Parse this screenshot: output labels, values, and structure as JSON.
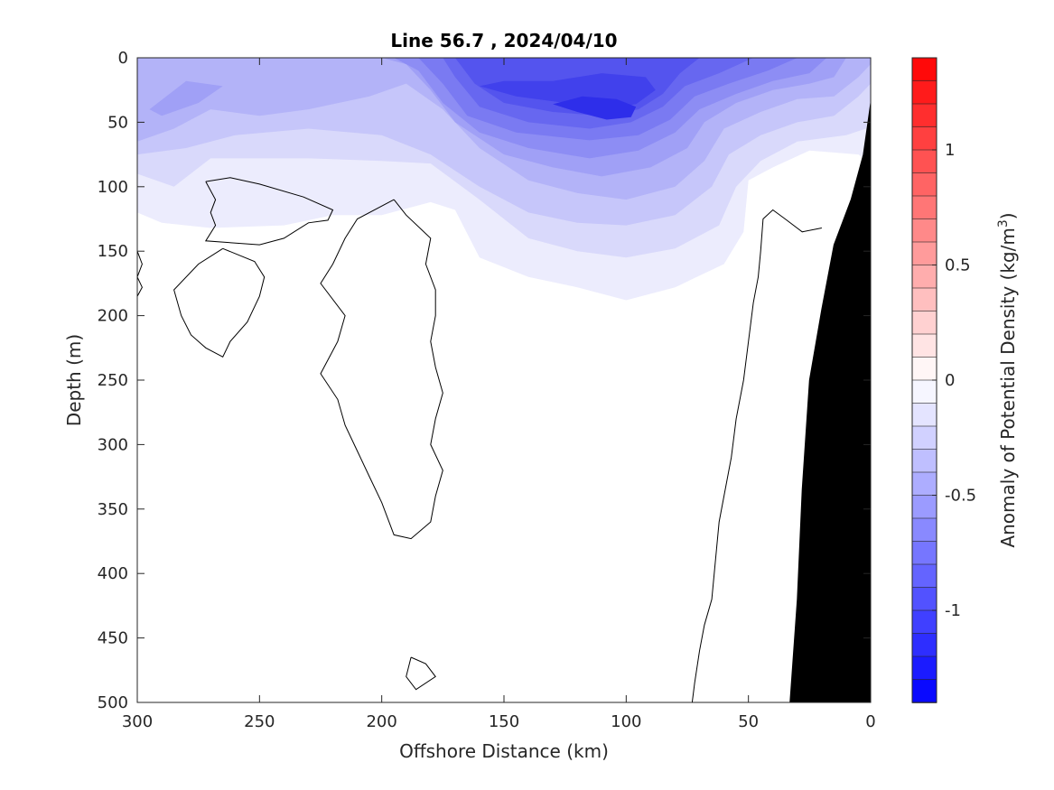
{
  "chart_data": {
    "type": "heatmap",
    "title": "Line 56.7 , 2024/04/10",
    "xlabel": "Offshore Distance (km)",
    "ylabel": "Depth (m)",
    "xlim": [
      300,
      0
    ],
    "ylim": [
      500,
      0
    ],
    "x_ticks": [
      300,
      250,
      200,
      150,
      100,
      50,
      0
    ],
    "y_ticks": [
      0,
      50,
      100,
      150,
      200,
      250,
      300,
      350,
      400,
      450,
      500
    ],
    "colorbar": {
      "label": "Anomaly of Potential Density (kg/m",
      "label_sup": "3",
      "label_end": ")",
      "ticks": [
        1,
        0.5,
        0,
        -0.5,
        -1
      ],
      "tick_labels": [
        "1",
        "0.5",
        "0",
        "-0.5",
        "-1"
      ],
      "range": [
        -1.4,
        1.4
      ],
      "levels": 28
    },
    "anomaly_levels": [
      {
        "level": -0.1,
        "color": "#ececfd",
        "boundary": [
          [
            300,
            120
          ],
          [
            290,
            128
          ],
          [
            270,
            132
          ],
          [
            240,
            130
          ],
          [
            220,
            122
          ],
          [
            200,
            122
          ],
          [
            180,
            112
          ],
          [
            170,
            118
          ],
          [
            160,
            155
          ],
          [
            140,
            170
          ],
          [
            120,
            178
          ],
          [
            100,
            188
          ],
          [
            80,
            178
          ],
          [
            60,
            160
          ],
          [
            52,
            135
          ],
          [
            50,
            95
          ],
          [
            40,
            85
          ],
          [
            25,
            72
          ],
          [
            5,
            75
          ],
          [
            0,
            82
          ],
          [
            0,
            0
          ],
          [
            300,
            0
          ]
        ]
      },
      {
        "level": -0.2,
        "color": "#d9d9fb",
        "boundary": [
          [
            300,
            90
          ],
          [
            285,
            100
          ],
          [
            270,
            78
          ],
          [
            230,
            78
          ],
          [
            200,
            80
          ],
          [
            180,
            82
          ],
          [
            160,
            110
          ],
          [
            140,
            140
          ],
          [
            120,
            150
          ],
          [
            100,
            155
          ],
          [
            80,
            148
          ],
          [
            62,
            130
          ],
          [
            55,
            100
          ],
          [
            45,
            80
          ],
          [
            30,
            65
          ],
          [
            10,
            60
          ],
          [
            2,
            55
          ],
          [
            0,
            40
          ],
          [
            0,
            0
          ],
          [
            300,
            0
          ]
        ]
      },
      {
        "level": -0.3,
        "color": "#c6c6fa",
        "boundary": [
          [
            300,
            75
          ],
          [
            280,
            70
          ],
          [
            260,
            60
          ],
          [
            230,
            55
          ],
          [
            200,
            60
          ],
          [
            180,
            75
          ],
          [
            160,
            100
          ],
          [
            140,
            120
          ],
          [
            120,
            128
          ],
          [
            100,
            130
          ],
          [
            80,
            122
          ],
          [
            65,
            100
          ],
          [
            58,
            75
          ],
          [
            45,
            60
          ],
          [
            30,
            50
          ],
          [
            15,
            45
          ],
          [
            5,
            30
          ],
          [
            0,
            20
          ],
          [
            0,
            0
          ],
          [
            300,
            0
          ]
        ]
      },
      {
        "level": -0.4,
        "color": "#b3b3f8",
        "boundary": [
          [
            300,
            65
          ],
          [
            285,
            55
          ],
          [
            270,
            40
          ],
          [
            250,
            45
          ],
          [
            230,
            40
          ],
          [
            205,
            30
          ],
          [
            190,
            20
          ],
          [
            175,
            40
          ],
          [
            160,
            70
          ],
          [
            140,
            95
          ],
          [
            120,
            105
          ],
          [
            100,
            110
          ],
          [
            80,
            100
          ],
          [
            68,
            80
          ],
          [
            60,
            55
          ],
          [
            45,
            42
          ],
          [
            30,
            32
          ],
          [
            15,
            30
          ],
          [
            5,
            15
          ],
          [
            0,
            5
          ],
          [
            0,
            0
          ],
          [
            250,
            0
          ],
          [
            240,
            10
          ],
          [
            215,
            20
          ],
          [
            200,
            15
          ],
          [
            230,
            0
          ],
          [
            300,
            0
          ]
        ]
      },
      {
        "level": -0.5,
        "color": "#a0a0f6",
        "boundary": [
          [
            290,
            45
          ],
          [
            275,
            35
          ],
          [
            265,
            22
          ],
          [
            280,
            18
          ],
          [
            295,
            40
          ],
          [
            290,
            45
          ]
        ]
      },
      {
        "level": -0.5,
        "color": "#a0a0f6",
        "boundary": [
          [
            200,
            0
          ],
          [
            190,
            5
          ],
          [
            180,
            25
          ],
          [
            170,
            50
          ],
          [
            150,
            75
          ],
          [
            130,
            85
          ],
          [
            110,
            92
          ],
          [
            90,
            85
          ],
          [
            75,
            70
          ],
          [
            68,
            50
          ],
          [
            55,
            35
          ],
          [
            40,
            25
          ],
          [
            25,
            20
          ],
          [
            15,
            15
          ],
          [
            10,
            0
          ]
        ]
      },
      {
        "level": -0.6,
        "color": "#8d8df4",
        "boundary": [
          [
            195,
            0
          ],
          [
            185,
            10
          ],
          [
            175,
            35
          ],
          [
            160,
            58
          ],
          [
            140,
            70
          ],
          [
            115,
            78
          ],
          [
            95,
            72
          ],
          [
            80,
            58
          ],
          [
            70,
            40
          ],
          [
            55,
            28
          ],
          [
            40,
            18
          ],
          [
            25,
            12
          ],
          [
            18,
            0
          ]
        ]
      },
      {
        "level": -0.7,
        "color": "#7a7af2",
        "boundary": [
          [
            185,
            0
          ],
          [
            175,
            20
          ],
          [
            165,
            45
          ],
          [
            145,
            58
          ],
          [
            115,
            64
          ],
          [
            95,
            60
          ],
          [
            82,
            48
          ],
          [
            72,
            30
          ],
          [
            58,
            20
          ],
          [
            42,
            10
          ],
          [
            30,
            0
          ]
        ]
      },
      {
        "level": -0.8,
        "color": "#6767f0",
        "boundary": [
          [
            175,
            0
          ],
          [
            170,
            15
          ],
          [
            160,
            38
          ],
          [
            140,
            50
          ],
          [
            115,
            55
          ],
          [
            98,
            50
          ],
          [
            85,
            38
          ],
          [
            76,
            22
          ],
          [
            62,
            12
          ],
          [
            48,
            0
          ]
        ]
      },
      {
        "level": -0.9,
        "color": "#5454ee",
        "boundary": [
          [
            170,
            0
          ],
          [
            162,
            20
          ],
          [
            150,
            35
          ],
          [
            130,
            42
          ],
          [
            110,
            45
          ],
          [
            95,
            40
          ],
          [
            85,
            28
          ],
          [
            78,
            12
          ],
          [
            70,
            0
          ]
        ]
      },
      {
        "level": -1.0,
        "color": "#4141ec",
        "boundary": [
          [
            160,
            22
          ],
          [
            145,
            30
          ],
          [
            125,
            35
          ],
          [
            110,
            40
          ],
          [
            96,
            36
          ],
          [
            88,
            25
          ],
          [
            92,
            15
          ],
          [
            110,
            12
          ],
          [
            130,
            18
          ],
          [
            150,
            18
          ],
          [
            160,
            22
          ]
        ]
      },
      {
        "level": -1.1,
        "color": "#2e2eea",
        "boundary": [
          [
            130,
            36
          ],
          [
            120,
            42
          ],
          [
            108,
            48
          ],
          [
            98,
            46
          ],
          [
            96,
            38
          ],
          [
            104,
            32
          ],
          [
            118,
            30
          ],
          [
            130,
            36
          ]
        ]
      }
    ],
    "zero_contours": [
      [
        [
          300,
          150
        ],
        [
          298,
          160
        ],
        [
          300,
          170
        ]
      ],
      [
        [
          300,
          170
        ],
        [
          298,
          178
        ],
        [
          300,
          185
        ]
      ],
      [
        [
          272,
          96
        ],
        [
          268,
          110
        ],
        [
          270,
          120
        ],
        [
          268,
          130
        ],
        [
          272,
          142
        ],
        [
          250,
          145
        ],
        [
          240,
          140
        ],
        [
          230,
          128
        ],
        [
          222,
          126
        ],
        [
          220,
          118
        ],
        [
          232,
          108
        ],
        [
          250,
          98
        ],
        [
          262,
          93
        ],
        [
          272,
          96
        ]
      ],
      [
        [
          265,
          148
        ],
        [
          275,
          160
        ],
        [
          285,
          180
        ],
        [
          282,
          200
        ],
        [
          278,
          215
        ],
        [
          272,
          225
        ],
        [
          265,
          232
        ],
        [
          262,
          220
        ],
        [
          255,
          205
        ],
        [
          250,
          185
        ],
        [
          248,
          170
        ],
        [
          252,
          158
        ],
        [
          265,
          148
        ]
      ],
      [
        [
          195,
          110
        ],
        [
          210,
          125
        ],
        [
          215,
          140
        ],
        [
          220,
          160
        ],
        [
          225,
          175
        ],
        [
          215,
          200
        ],
        [
          218,
          220
        ],
        [
          225,
          245
        ],
        [
          218,
          265
        ],
        [
          215,
          285
        ],
        [
          210,
          305
        ],
        [
          205,
          325
        ],
        [
          200,
          345
        ],
        [
          195,
          370
        ],
        [
          188,
          373
        ],
        [
          180,
          360
        ],
        [
          178,
          340
        ],
        [
          175,
          320
        ],
        [
          180,
          300
        ],
        [
          178,
          280
        ],
        [
          175,
          260
        ],
        [
          178,
          240
        ],
        [
          180,
          220
        ],
        [
          178,
          200
        ],
        [
          178,
          180
        ],
        [
          182,
          160
        ],
        [
          180,
          140
        ],
        [
          190,
          122
        ],
        [
          195,
          110
        ]
      ],
      [
        [
          188,
          465
        ],
        [
          182,
          470
        ],
        [
          178,
          480
        ],
        [
          186,
          490
        ],
        [
          190,
          480
        ],
        [
          188,
          465
        ]
      ],
      [
        [
          73,
          500
        ],
        [
          72,
          485
        ],
        [
          70,
          460
        ],
        [
          68,
          440
        ],
        [
          65,
          420
        ],
        [
          64,
          400
        ],
        [
          63,
          380
        ],
        [
          62,
          360
        ],
        [
          60,
          340
        ],
        [
          57,
          310
        ],
        [
          55,
          280
        ],
        [
          52,
          250
        ],
        [
          50,
          220
        ],
        [
          48,
          190
        ],
        [
          46,
          170
        ],
        [
          45,
          150
        ],
        [
          44,
          125
        ],
        [
          40,
          118
        ],
        [
          35,
          125
        ],
        [
          28,
          135
        ],
        [
          20,
          132
        ]
      ]
    ],
    "seafloor": [
      [
        33,
        500
      ],
      [
        30,
        420
      ],
      [
        28,
        335
      ],
      [
        25,
        250
      ],
      [
        20,
        195
      ],
      [
        15,
        145
      ],
      [
        8,
        110
      ],
      [
        3,
        75
      ],
      [
        0,
        35
      ],
      [
        0,
        500
      ]
    ]
  }
}
